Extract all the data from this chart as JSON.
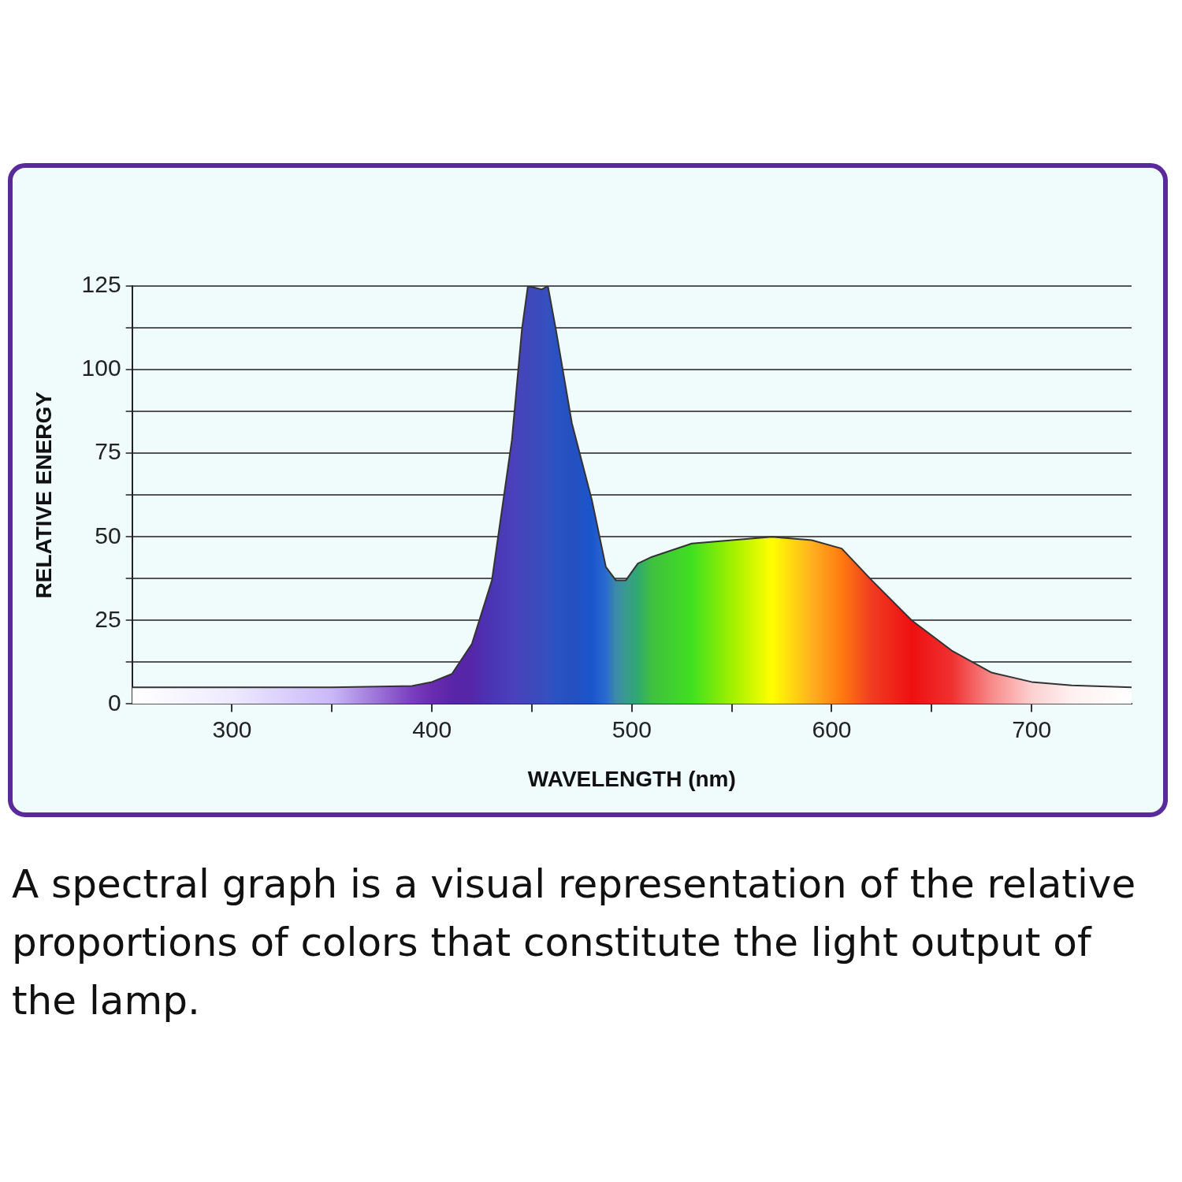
{
  "chart_data": {
    "type": "area",
    "xlabel": "WAVELENGTH (nm)",
    "ylabel": "RELATIVE ENERGY",
    "annotations": [
      "A spectral graph is a visual representation of the relative proportions of colors that constitute the light output of the lamp."
    ],
    "xlim": [
      250,
      750
    ],
    "xticks": [
      300,
      {
        "value": 350,
        "label": null
      },
      400,
      {
        "value": 450,
        "label": null
      },
      500,
      {
        "value": 550,
        "label": null
      },
      600,
      {
        "value": 650,
        "label": null
      },
      700
    ],
    "ylim": [
      0,
      125
    ],
    "yticks": [
      0,
      {
        "value": 12.5,
        "label": null
      },
      25,
      {
        "value": 37.5,
        "label": null
      },
      50,
      {
        "value": 62.5,
        "label": null
      },
      75,
      {
        "value": 87.5,
        "label": null
      },
      100,
      {
        "value": 112.5,
        "label": null
      },
      125
    ],
    "grid": "y",
    "series": [
      {
        "color": "#333333",
        "x": [
          250,
          300,
          350,
          390,
          400,
          410,
          420,
          430,
          440,
          445,
          448,
          455,
          458,
          462,
          470,
          480,
          487,
          492,
          497,
          503,
          510,
          530,
          550,
          570,
          590,
          605,
          620,
          640,
          660,
          680,
          700,
          720,
          750
        ],
        "values": [
          5,
          5,
          5,
          5.4,
          6.6,
          9,
          18,
          37,
          79,
          112,
          125,
          124,
          125,
          112,
          84,
          61,
          41,
          37,
          37,
          42,
          44,
          48,
          49,
          50,
          49,
          46.5,
          37,
          25,
          16,
          9.4,
          6.6,
          5.6,
          5
        ],
        "colors": [
          "#ffffff",
          "#eeeaff",
          "#c9b8f8",
          "#7a3ec0",
          "#6a2cb0",
          "#5a25a8",
          "#5527a8",
          "#4a35b5",
          "#4b40bb",
          "#4545bb",
          "#4048bb",
          "#3a4cbd",
          "#3550c0",
          "#2a52c2",
          "#2550c0",
          "#1a55cc",
          "#2a6ad0",
          "#3a8aa8",
          "#3a9a90",
          "#30a870",
          "#40c040",
          "#40e020",
          "#a0f000",
          "#ffff00",
          "#ffb020",
          "#ff7a10",
          "#f03c20",
          "#ee1010",
          "#f03030",
          "#f88a8a",
          "#fcd0d0",
          "#fff0f0",
          "#ffffff"
        ]
      }
    ]
  }
}
